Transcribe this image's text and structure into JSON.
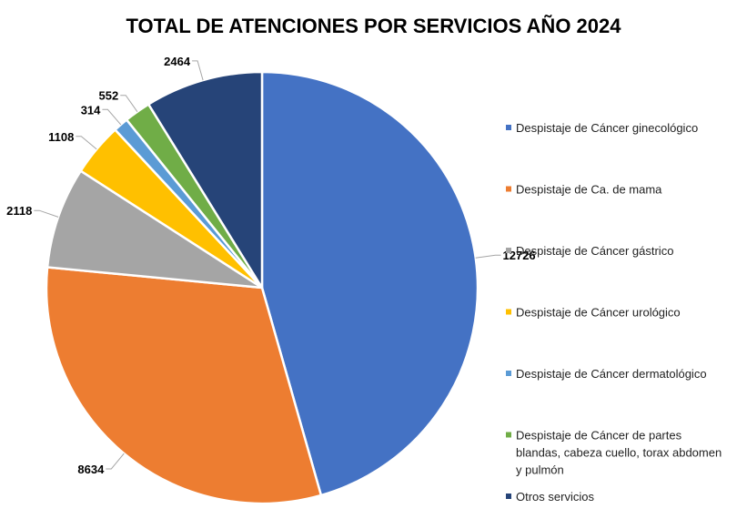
{
  "chart_data": {
    "type": "pie",
    "title": "TOTAL DE ATENCIONES POR SERVICIOS AÑO 2024",
    "legend_position": "right",
    "slices": [
      {
        "label": "Despistaje de Cáncer ginecológico",
        "value": 12726,
        "value_label": "12726",
        "color": "#4472C4",
        "legend_lines": [
          "Despistaje de Cáncer ginecológico"
        ]
      },
      {
        "label": "Despistaje de Ca. de mama",
        "value": 8634,
        "value_label": "8634",
        "color": "#ED7D31",
        "legend_lines": [
          "Despistaje de Ca. de mama"
        ]
      },
      {
        "label": "Despistaje de Cáncer gástrico",
        "value": 2118,
        "value_label": "2118",
        "color": "#A5A5A5",
        "legend_lines": [
          "Despistaje de Cáncer gástrico"
        ]
      },
      {
        "label": "Despistaje de Cáncer urológico",
        "value": 1108,
        "value_label": "1108",
        "color": "#FFC000",
        "legend_lines": [
          "Despistaje de Cáncer urológico"
        ]
      },
      {
        "label": "Despistaje de Cáncer dermatológico",
        "value": 314,
        "value_label": "314",
        "color": "#5B9BD5",
        "legend_lines": [
          "Despistaje de Cáncer dermatológico"
        ]
      },
      {
        "label": "Despistaje de Cáncer de partes blandas, cabeza cuello, torax abdomen y pulmón",
        "value": 552,
        "value_label": "552",
        "color": "#70AD47",
        "legend_lines": [
          "Despistaje de Cáncer de partes",
          "blandas, cabeza cuello, torax abdomen",
          "y pulmón"
        ]
      },
      {
        "label": "Otros servicios",
        "value": 2464,
        "value_label": "2464",
        "color": "#264478",
        "legend_lines": [
          "Otros servicios"
        ]
      }
    ]
  }
}
